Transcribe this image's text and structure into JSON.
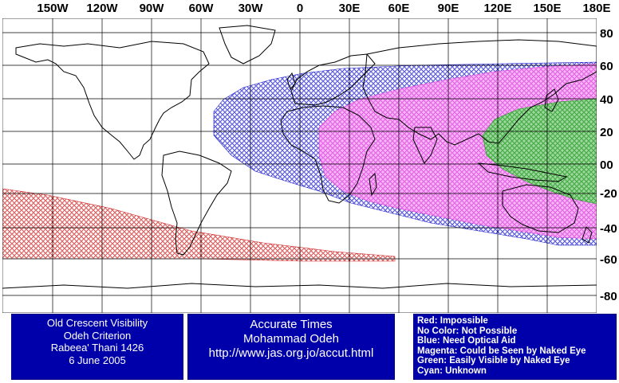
{
  "map": {
    "lon_labels": [
      "150W",
      "120W",
      "90W",
      "60W",
      "30W",
      "0",
      "30E",
      "60E",
      "90E",
      "120E",
      "150E",
      "180E"
    ],
    "lat_labels": [
      "80",
      "60",
      "40",
      "20",
      "00",
      "-20",
      "-40",
      "-60",
      "-80"
    ],
    "colors": {
      "impossible": "#cc2222",
      "optical_aid": "#1a1acc",
      "naked_eye_maybe": "#ee55ee",
      "easily_visible": "#22aa22",
      "coast": "#000000",
      "grid": "#000000"
    }
  },
  "info_left": {
    "line1": "Old Crescent Visibility",
    "line2": "Odeh Criterion",
    "line3": "Rabeea' Thani 1426",
    "line4": "6 June 2005"
  },
  "info_middle": {
    "line1": "Accurate Times",
    "line2": "Mohammad Odeh",
    "line3": "http://www.jas.org.jo/accut.html"
  },
  "legend": {
    "red": "Red: Impossible",
    "none": "No Color: Not Possible",
    "blue": "Blue: Need Optical Aid",
    "magenta": "Magenta: Could be Seen by Naked Eye",
    "green": "Green: Easily Visible by Naked Eye",
    "cyan": "Cyan: Unknown"
  }
}
